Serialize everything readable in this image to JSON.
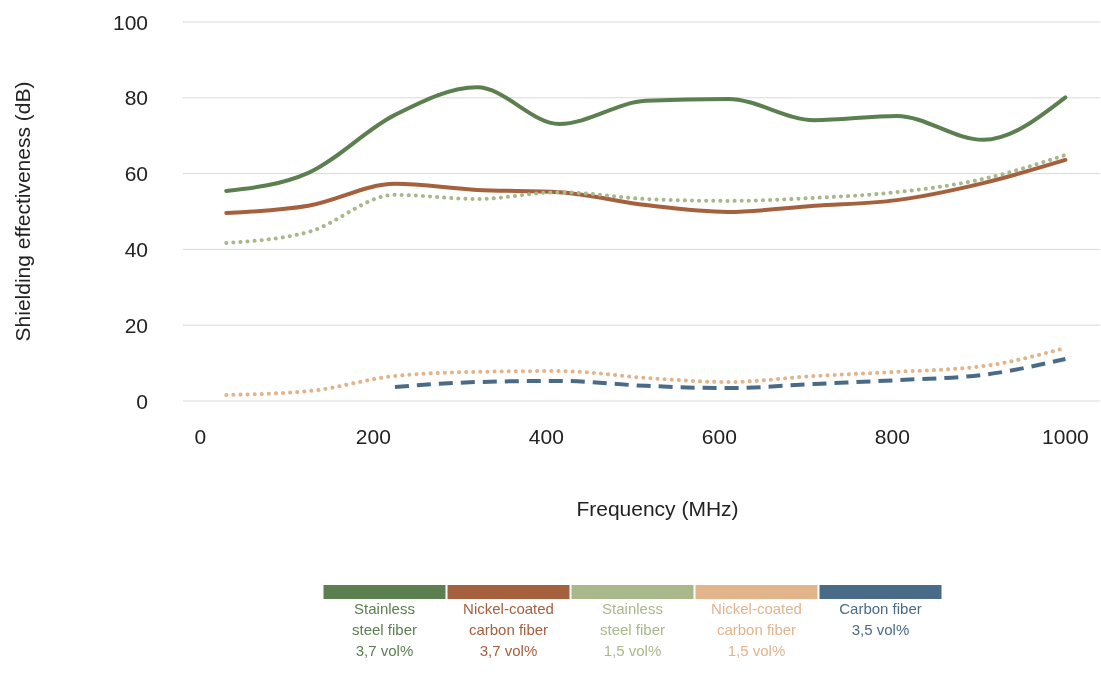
{
  "chart_data": {
    "type": "line",
    "xlabel": "Frequency (MHz)",
    "ylabel": "Shielding effectiveness (dB)",
    "x": [
      30,
      125,
      225,
      320,
      415,
      515,
      610,
      710,
      805,
      905,
      1000
    ],
    "xlim": [
      -20,
      1040
    ],
    "xticks": [
      0,
      200,
      400,
      600,
      800,
      1000
    ],
    "ylim": [
      0,
      100
    ],
    "yticks": [
      0,
      20,
      40,
      60,
      80,
      100
    ],
    "grid": "y",
    "legend": "bottom",
    "series": [
      {
        "name": "Stainless steel fiber 3,7 vol%",
        "color": "#5b7f4f",
        "line_style": "solid",
        "values": [
          55.4,
          60.2,
          75.5,
          82.8,
          73.1,
          79.2,
          79.7,
          74.1,
          75.2,
          68.9,
          80.1
        ]
      },
      {
        "name": "Nickel-coated carbon fiber 3,7 vol%",
        "color": "#a5603d",
        "line_style": "solid",
        "values": [
          49.6,
          51.5,
          57.3,
          55.7,
          55.1,
          51.7,
          49.9,
          51.5,
          53.0,
          57.5,
          63.6
        ]
      },
      {
        "name": "Stainless steel fiber 1,5 vol%",
        "color": "#a9b88a",
        "line_style": "dotted",
        "values": [
          41.7,
          44.6,
          54.4,
          53.3,
          55.1,
          53.3,
          52.8,
          53.6,
          55.1,
          58.6,
          64.9
        ]
      },
      {
        "name": "Nickel-coated carbon fiber 1,5 vol%",
        "color": "#e2b48c",
        "line_style": "dotted",
        "values": [
          1.6,
          2.6,
          6.6,
          7.7,
          7.9,
          6.1,
          5.0,
          6.6,
          7.7,
          9.2,
          14.0
        ]
      },
      {
        "name": "Carbon fiber 3,5 vol%",
        "color": "#4a6b88",
        "line_style": "dashed",
        "values": [
          null,
          null,
          3.7,
          5.0,
          5.3,
          4.0,
          3.4,
          4.5,
          5.5,
          6.9,
          11.1
        ]
      }
    ]
  }
}
